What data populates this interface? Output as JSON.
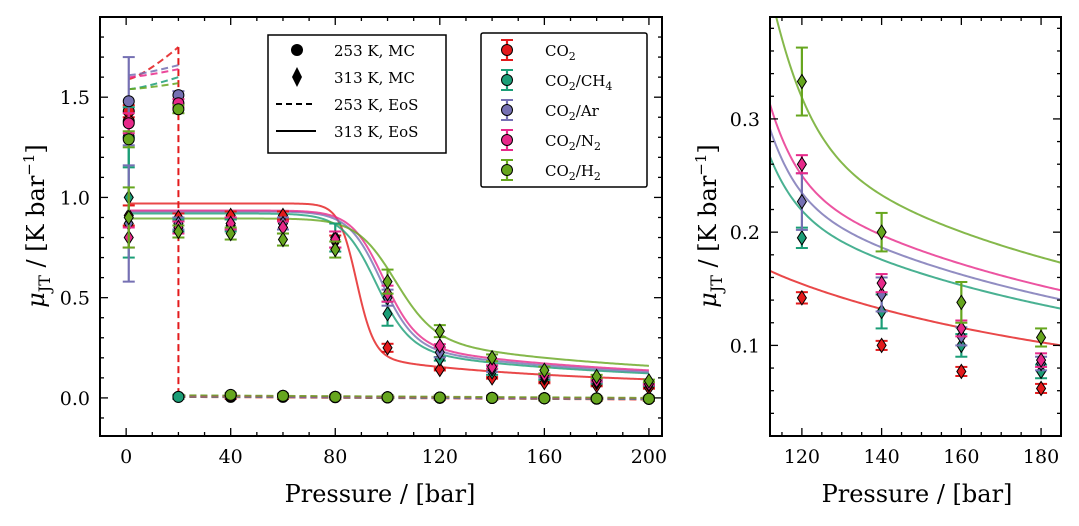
{
  "chart_data": [
    {
      "type": "scatter",
      "panel": "main",
      "xlabel": "Pressure / [bar]",
      "ylabel": "μ_JT / [K bar⁻¹]",
      "xlim": [
        -10,
        205
      ],
      "ylim": [
        -0.19,
        1.9
      ],
      "xticks": [
        0,
        40,
        80,
        120,
        160,
        200
      ],
      "yticks": [
        0.0,
        0.5,
        1.0,
        1.5
      ],
      "xtick_labels": [
        "0",
        "40",
        "80",
        "120",
        "160",
        "200"
      ],
      "ytick_labels": [
        "0.0",
        "0.5",
        "1.0",
        "1.5"
      ],
      "legend_markers": [
        {
          "label": "253 K, MC",
          "style": "circle"
        },
        {
          "label": "313 K, MC",
          "style": "diamond"
        },
        {
          "label": "253 K, EoS",
          "style": "dashed"
        },
        {
          "label": "313 K, EoS",
          "style": "solid"
        }
      ],
      "legend_systems": [
        {
          "label": "CO2",
          "base": "CO",
          "sub": "2",
          "tail": "",
          "color": "#e31a1c"
        },
        {
          "label": "CO2/CH4",
          "base": "CO",
          "sub": "2",
          "tail": "/CH",
          "sub2": "4",
          "color": "#1b9e77"
        },
        {
          "label": "CO2/Ar",
          "base": "CO",
          "sub": "2",
          "tail": "/Ar",
          "color": "#7570b3"
        },
        {
          "label": "CO2/N2",
          "base": "CO",
          "sub": "2",
          "tail": "/N",
          "sub2": "2",
          "color": "#e7298a"
        },
        {
          "label": "CO2/H2",
          "base": "CO",
          "sub": "2",
          "tail": "/H",
          "sub2": "2",
          "color": "#66a61e"
        }
      ],
      "series": [
        {
          "name": "CO2",
          "color": "#e31a1c",
          "mc253_x": [
            1,
            20,
            40,
            60,
            80,
            100,
            120,
            140,
            160,
            180,
            200
          ],
          "mc253_y": [
            1.43,
            0.005,
            0.005,
            0.005,
            0.003,
            0.002,
            0.001,
            0.0,
            -0.002,
            -0.004,
            -0.005
          ],
          "mc253_err": [
            0.03,
            0.01,
            0.01,
            0.01,
            0.01,
            0.01,
            0.01,
            0.01,
            0.01,
            0.01,
            0.01
          ],
          "mc253_x_extra": [
            1
          ],
          "mc253_y_extra": [
            1.38
          ],
          "mc313_x": [
            1,
            20,
            40,
            60,
            80,
            100,
            120,
            140,
            160,
            180,
            200
          ],
          "mc313_y": [
            0.91,
            0.9,
            0.91,
            0.91,
            0.78,
            0.25,
            0.142,
            0.1,
            0.077,
            0.062,
            0.05
          ],
          "mc313_err": [
            0.05,
            0.02,
            0.02,
            0.02,
            0.03,
            0.02,
            0.005,
            0.004,
            0.004,
            0.004,
            0.004
          ],
          "eos253": [
            [
              1,
              1.59
            ],
            [
              20,
              1.75
            ]
          ],
          "eos313_plateau": 0.97,
          "eos313_p0": 88,
          "eos313_w": 3.4,
          "eos313_tail": 18.5
        },
        {
          "name": "CO2/CH4",
          "color": "#1b9e77",
          "mc253_x": [
            1,
            20,
            40,
            60,
            80,
            100,
            120,
            140,
            160,
            180,
            200
          ],
          "mc253_y": [
            1.3,
            0.005,
            0.01,
            0.01,
            0.005,
            0.003,
            0.002,
            0.0,
            -0.002,
            -0.003,
            -0.004
          ],
          "mc253_err": [
            0.15,
            0.01,
            0.01,
            0.01,
            0.01,
            0.01,
            0.01,
            0.01,
            0.01,
            0.01,
            0.01
          ],
          "mc313_x": [
            1,
            20,
            40,
            60,
            80,
            100,
            120,
            140,
            160,
            180,
            200
          ],
          "mc313_y": [
            1.0,
            0.86,
            0.86,
            0.85,
            0.8,
            0.42,
            0.195,
            0.13,
            0.1,
            0.077,
            0.065
          ],
          "mc313_err": [
            0.3,
            0.03,
            0.03,
            0.03,
            0.07,
            0.06,
            0.009,
            0.015,
            0.01,
            0.006,
            0.005
          ],
          "eos253": [
            [
              1,
              1.54
            ],
            [
              20,
              1.6
            ]
          ],
          "eos313_plateau": 0.92,
          "eos313_p0": 95,
          "eos313_w": 6.5,
          "eos313_tail": 24.5
        },
        {
          "name": "CO2/Ar",
          "color": "#7570b3",
          "mc253_x": [
            1,
            20,
            40,
            60,
            80,
            100,
            120,
            140,
            160,
            180,
            200
          ],
          "mc253_y": [
            1.48,
            1.51,
            0.01,
            0.01,
            0.005,
            0.003,
            0.001,
            0.0,
            -0.001,
            -0.003,
            -0.004
          ],
          "mc253_err": [
            0.22,
            0.02,
            0.01,
            0.01,
            0.01,
            0.01,
            0.01,
            0.01,
            0.01,
            0.01,
            0.01
          ],
          "mc313_x": [
            1,
            20,
            40,
            60,
            80,
            100,
            120,
            140,
            160,
            180,
            200
          ],
          "mc313_y": [
            0.87,
            0.87,
            0.87,
            0.87,
            0.79,
            0.5,
            0.227,
            0.145,
            0.108,
            0.084,
            0.068
          ],
          "mc313_err": [
            0.29,
            0.03,
            0.03,
            0.03,
            0.04,
            0.04,
            0.025,
            0.015,
            0.008,
            0.006,
            0.005
          ],
          "eos253": [
            [
              1,
              1.61
            ],
            [
              20,
              1.66
            ]
          ],
          "eos313_plateau": 0.93,
          "eos313_p0": 97,
          "eos313_w": 6.3,
          "eos313_tail": 26.0
        },
        {
          "name": "CO2/N2",
          "color": "#e7298a",
          "mc253_x": [
            1,
            20,
            40,
            60,
            80,
            100,
            120,
            140,
            160,
            180,
            200
          ],
          "mc253_y": [
            1.37,
            1.47,
            0.01,
            0.01,
            0.005,
            0.003,
            0.001,
            0.0,
            -0.002,
            -0.003,
            -0.004
          ],
          "mc253_err": [
            0.05,
            0.02,
            0.01,
            0.01,
            0.01,
            0.01,
            0.01,
            0.01,
            0.01,
            0.01,
            0.01
          ],
          "mc313_x": [
            1,
            20,
            40,
            60,
            80,
            100,
            120,
            140,
            160,
            180,
            200
          ],
          "mc313_y": [
            0.8,
            0.85,
            0.87,
            0.85,
            0.79,
            0.52,
            0.26,
            0.155,
            0.115,
            0.087,
            0.07
          ],
          "mc313_err": [
            0.05,
            0.03,
            0.03,
            0.03,
            0.04,
            0.04,
            0.008,
            0.008,
            0.007,
            0.006,
            0.005
          ],
          "eos253": [
            [
              1,
              1.6
            ],
            [
              20,
              1.64
            ]
          ],
          "eos313_plateau": 0.935,
          "eos313_p0": 98,
          "eos313_w": 6.3,
          "eos313_tail": 27.5
        },
        {
          "name": "CO2/H2",
          "color": "#66a61e",
          "mc253_x": [
            1,
            20,
            40,
            60,
            80,
            100,
            120,
            140,
            160,
            180,
            200
          ],
          "mc253_y": [
            1.29,
            1.44,
            0.015,
            0.01,
            0.005,
            0.003,
            0.002,
            0.0,
            -0.002,
            -0.003,
            -0.004
          ],
          "mc253_err": [
            0.04,
            0.02,
            0.01,
            0.01,
            0.01,
            0.01,
            0.01,
            0.01,
            0.01,
            0.01,
            0.01
          ],
          "mc313_x": [
            1,
            20,
            40,
            60,
            80,
            100,
            120,
            140,
            160,
            180,
            200
          ],
          "mc313_y": [
            0.9,
            0.83,
            0.82,
            0.79,
            0.74,
            0.58,
            0.333,
            0.2,
            0.138,
            0.107,
            0.085
          ],
          "mc313_err": [
            0.15,
            0.03,
            0.03,
            0.03,
            0.04,
            0.06,
            0.03,
            0.017,
            0.018,
            0.008,
            0.006
          ],
          "eos253": [
            [
              1,
              1.54
            ],
            [
              20,
              1.57
            ]
          ],
          "eos313_plateau": 0.895,
          "eos313_p0": 102,
          "eos313_w": 7.5,
          "eos313_tail": 32.0
        }
      ]
    },
    {
      "type": "scatter",
      "panel": "inset",
      "xlabel": "Pressure / [bar]",
      "ylabel": "μ_JT / [K bar⁻¹]",
      "xlim": [
        112,
        185
      ],
      "ylim": [
        0.02,
        0.39
      ],
      "xticks": [
        120,
        140,
        160,
        180
      ],
      "yticks": [
        0.1,
        0.2,
        0.3
      ],
      "xtick_labels": [
        "120",
        "140",
        "160",
        "180"
      ],
      "ytick_labels": [
        "0.1",
        "0.2",
        "0.3"
      ]
    }
  ],
  "labels": {
    "main_xlabel": "Pressure / [bar]",
    "inset_xlabel": "Pressure / [bar]",
    "ylabel_mu": "μ",
    "ylabel_sub": "JT",
    "ylabel_rest": " / [K bar",
    "ylabel_sup": "−1",
    "ylabel_close": "]",
    "leg1": [
      "253 K, MC",
      "313 K, MC",
      "253 K, EoS",
      "313 K, EoS"
    ]
  }
}
